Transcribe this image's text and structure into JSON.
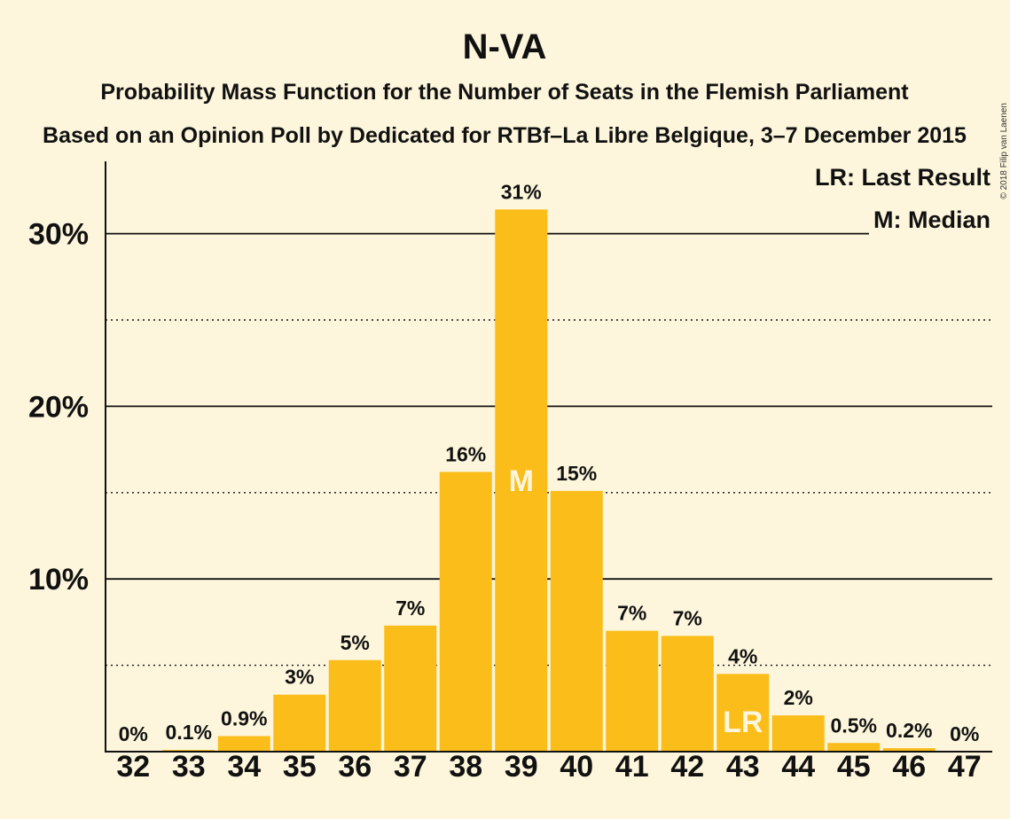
{
  "title": "N-VA",
  "subtitle1": "Probability Mass Function for the Number of Seats in the Flemish Parliament",
  "subtitle2": "Based on an Opinion Poll by Dedicated for RTBf–La Libre Belgique, 3–7 December 2015",
  "copyright": "© 2018 Filip van Laenen",
  "legend": {
    "last_result": "LR: Last Result",
    "median": "M: Median"
  },
  "colors": {
    "bar": "#fbbd19",
    "background": "#fdf6dc",
    "text": "#111111"
  },
  "chart_data": {
    "type": "bar",
    "categories": [
      "32",
      "33",
      "34",
      "35",
      "36",
      "37",
      "38",
      "39",
      "40",
      "41",
      "42",
      "43",
      "44",
      "45",
      "46",
      "47"
    ],
    "values": [
      0,
      0.1,
      0.9,
      3.3,
      5.3,
      7.3,
      16.2,
      31.4,
      15.1,
      7.0,
      6.7,
      4.5,
      2.1,
      0.5,
      0.2,
      0
    ],
    "data_labels": [
      "0%",
      "0.1%",
      "0.9%",
      "3%",
      "5%",
      "7%",
      "16%",
      "31%",
      "15%",
      "7%",
      "7%",
      "4%",
      "2%",
      "0.5%",
      "0.2%",
      "0%"
    ],
    "y_ticks": [
      {
        "value": 10,
        "label": "10%"
      },
      {
        "value": 20,
        "label": "20%"
      },
      {
        "value": 30,
        "label": "30%"
      }
    ],
    "ylim": [
      0,
      34
    ],
    "grid": "major solid at 10%, minor dotted at 5%",
    "markers": [
      {
        "category": "39",
        "text": "M"
      },
      {
        "category": "43",
        "text": "LR"
      }
    ],
    "legend_position": "top-right"
  }
}
